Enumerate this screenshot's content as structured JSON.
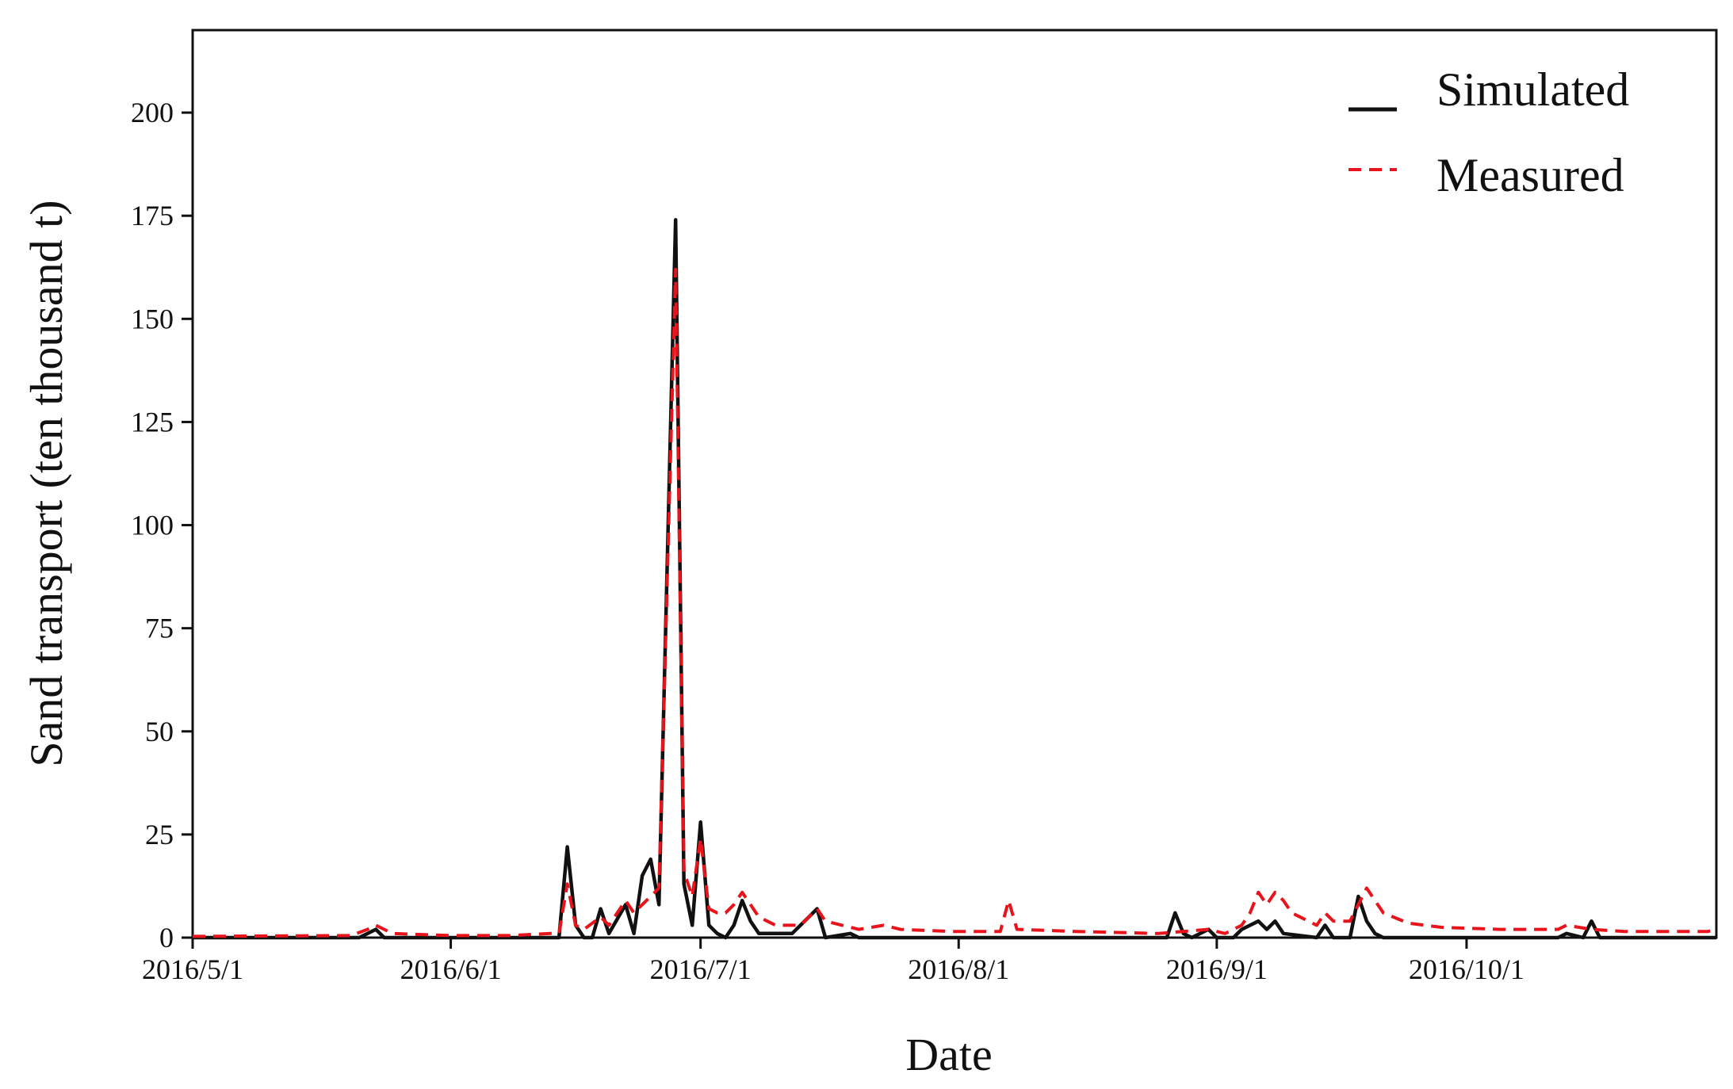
{
  "chart_data": {
    "type": "line",
    "title": "",
    "xlabel": "Date",
    "ylabel": "Sand transport (ten thousand t)",
    "x_range": [
      "2016-05-01",
      "2016-10-31"
    ],
    "x_ticks": [
      {
        "date": "2016-05-01",
        "label": "2016/5/1"
      },
      {
        "date": "2016-06-01",
        "label": "2016/6/1"
      },
      {
        "date": "2016-07-01",
        "label": "2016/7/1"
      },
      {
        "date": "2016-08-01",
        "label": "2016/8/1"
      },
      {
        "date": "2016-09-01",
        "label": "2016/9/1"
      },
      {
        "date": "2016-10-01",
        "label": "2016/10/1"
      }
    ],
    "ylim": [
      0,
      220
    ],
    "y_ticks": [
      0,
      25,
      50,
      75,
      100,
      125,
      150,
      175,
      200
    ],
    "grid": false,
    "legend_position": "top-right",
    "series": [
      {
        "name": "Simulated",
        "color": "#111111",
        "style": "solid",
        "points": [
          [
            "2016-05-01",
            0
          ],
          [
            "2016-05-21",
            0
          ],
          [
            "2016-05-23",
            2
          ],
          [
            "2016-05-24",
            0
          ],
          [
            "2016-06-14",
            0
          ],
          [
            "2016-06-15",
            22
          ],
          [
            "2016-06-16",
            3
          ],
          [
            "2016-06-17",
            0
          ],
          [
            "2016-06-18",
            0
          ],
          [
            "2016-06-19",
            7
          ],
          [
            "2016-06-20",
            1
          ],
          [
            "2016-06-22",
            8
          ],
          [
            "2016-06-23",
            1
          ],
          [
            "2016-06-24",
            15
          ],
          [
            "2016-06-25",
            19
          ],
          [
            "2016-06-26",
            8
          ],
          [
            "2016-06-28",
            174
          ],
          [
            "2016-06-29",
            13
          ],
          [
            "2016-06-30",
            3
          ],
          [
            "2016-07-01",
            28
          ],
          [
            "2016-07-02",
            3
          ],
          [
            "2016-07-03",
            1
          ],
          [
            "2016-07-04",
            0
          ],
          [
            "2016-07-05",
            3
          ],
          [
            "2016-07-06",
            9
          ],
          [
            "2016-07-07",
            4
          ],
          [
            "2016-07-08",
            1
          ],
          [
            "2016-07-12",
            1
          ],
          [
            "2016-07-15",
            7
          ],
          [
            "2016-07-16",
            0
          ],
          [
            "2016-07-19",
            1
          ],
          [
            "2016-07-20",
            0
          ],
          [
            "2016-08-26",
            0
          ],
          [
            "2016-08-27",
            6
          ],
          [
            "2016-08-28",
            1
          ],
          [
            "2016-08-29",
            0
          ],
          [
            "2016-08-31",
            2
          ],
          [
            "2016-09-01",
            0
          ],
          [
            "2016-09-03",
            0
          ],
          [
            "2016-09-04",
            2
          ],
          [
            "2016-09-06",
            4
          ],
          [
            "2016-09-07",
            2
          ],
          [
            "2016-09-08",
            4
          ],
          [
            "2016-09-09",
            1
          ],
          [
            "2016-09-13",
            0
          ],
          [
            "2016-09-14",
            3
          ],
          [
            "2016-09-15",
            0
          ],
          [
            "2016-09-17",
            0
          ],
          [
            "2016-09-18",
            10
          ],
          [
            "2016-09-19",
            4
          ],
          [
            "2016-09-20",
            1
          ],
          [
            "2016-09-21",
            0
          ],
          [
            "2016-10-12",
            0
          ],
          [
            "2016-10-13",
            1
          ],
          [
            "2016-10-15",
            0
          ],
          [
            "2016-10-16",
            4
          ],
          [
            "2016-10-17",
            0
          ],
          [
            "2016-10-31",
            0
          ]
        ]
      },
      {
        "name": "Measured",
        "color": "#e8131b",
        "style": "dashed",
        "points": [
          [
            "2016-05-01",
            0.3
          ],
          [
            "2016-05-20",
            0.5
          ],
          [
            "2016-05-22",
            2
          ],
          [
            "2016-05-23",
            3
          ],
          [
            "2016-05-25",
            1
          ],
          [
            "2016-06-01",
            0.5
          ],
          [
            "2016-06-08",
            0.5
          ],
          [
            "2016-06-13",
            1
          ],
          [
            "2016-06-14",
            1
          ],
          [
            "2016-06-15",
            13
          ],
          [
            "2016-06-16",
            3
          ],
          [
            "2016-06-17",
            2
          ],
          [
            "2016-06-19",
            5
          ],
          [
            "2016-06-20",
            3
          ],
          [
            "2016-06-22",
            9
          ],
          [
            "2016-06-23",
            6
          ],
          [
            "2016-06-24",
            8
          ],
          [
            "2016-06-25",
            10
          ],
          [
            "2016-06-26",
            12
          ],
          [
            "2016-06-28",
            162
          ],
          [
            "2016-06-29",
            16
          ],
          [
            "2016-06-30",
            10
          ],
          [
            "2016-07-01",
            24
          ],
          [
            "2016-07-02",
            7
          ],
          [
            "2016-07-03",
            6
          ],
          [
            "2016-07-04",
            6
          ],
          [
            "2016-07-05",
            8
          ],
          [
            "2016-07-06",
            11
          ],
          [
            "2016-07-07",
            8
          ],
          [
            "2016-07-08",
            5
          ],
          [
            "2016-07-10",
            3
          ],
          [
            "2016-07-13",
            3
          ],
          [
            "2016-07-15",
            7
          ],
          [
            "2016-07-16",
            4
          ],
          [
            "2016-07-18",
            3
          ],
          [
            "2016-07-20",
            2
          ],
          [
            "2016-07-23",
            3
          ],
          [
            "2016-07-25",
            2
          ],
          [
            "2016-07-31",
            1.5
          ],
          [
            "2016-08-06",
            1.5
          ],
          [
            "2016-08-07",
            9
          ],
          [
            "2016-08-08",
            2
          ],
          [
            "2016-08-15",
            1.5
          ],
          [
            "2016-08-25",
            1
          ],
          [
            "2016-08-31",
            2
          ],
          [
            "2016-09-02",
            1
          ],
          [
            "2016-09-04",
            3
          ],
          [
            "2016-09-05",
            6
          ],
          [
            "2016-09-06",
            11
          ],
          [
            "2016-09-07",
            8
          ],
          [
            "2016-09-08",
            11
          ],
          [
            "2016-09-09",
            9
          ],
          [
            "2016-09-10",
            6
          ],
          [
            "2016-09-12",
            4
          ],
          [
            "2016-09-13",
            3
          ],
          [
            "2016-09-14",
            6
          ],
          [
            "2016-09-15",
            4
          ],
          [
            "2016-09-17",
            4
          ],
          [
            "2016-09-19",
            12
          ],
          [
            "2016-09-20",
            9
          ],
          [
            "2016-09-21",
            6
          ],
          [
            "2016-09-24",
            3.5
          ],
          [
            "2016-09-28",
            2.5
          ],
          [
            "2016-10-05",
            2
          ],
          [
            "2016-10-12",
            2
          ],
          [
            "2016-10-13",
            3
          ],
          [
            "2016-10-16",
            2
          ],
          [
            "2016-10-20",
            1.5
          ],
          [
            "2016-10-30",
            1.5
          ],
          [
            "2016-10-31",
            2
          ]
        ]
      }
    ]
  }
}
